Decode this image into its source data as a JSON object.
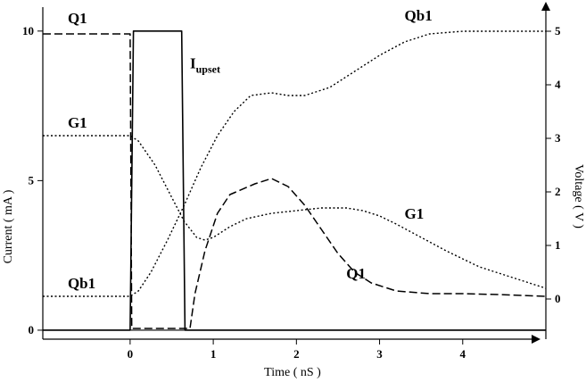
{
  "chart_data": {
    "type": "line",
    "xlabel": "Time ( nS )",
    "ylabel_left": "Current ( mA )",
    "ylabel_right": "Voltage ( V )",
    "xlim": [
      -1.05,
      5.0
    ],
    "ylim_left": [
      -0.3,
      10.8
    ],
    "ylim_right": [
      -0.75,
      5.45
    ],
    "x_ticks": [
      "0",
      "1",
      "2",
      "3",
      "4"
    ],
    "y_left_ticks": [
      "0",
      "5",
      "10"
    ],
    "y_right_ticks": [
      "0",
      "1",
      "2",
      "3",
      "4",
      "5"
    ],
    "series": [
      {
        "name": "Iupset",
        "axis": "left",
        "style": "solid",
        "points": [
          [
            -1.05,
            0
          ],
          [
            0.0,
            0
          ],
          [
            0.04,
            10
          ],
          [
            0.62,
            10
          ],
          [
            0.66,
            0
          ],
          [
            5.0,
            0
          ]
        ]
      },
      {
        "name": "Q1",
        "axis": "right",
        "style": "dashed",
        "points": [
          [
            -1.05,
            4.95
          ],
          [
            0.0,
            4.95
          ],
          [
            0.02,
            -0.55
          ],
          [
            0.72,
            -0.55
          ],
          [
            0.78,
            0.1
          ],
          [
            0.9,
            0.9
          ],
          [
            1.05,
            1.6
          ],
          [
            1.2,
            1.95
          ],
          [
            1.5,
            2.15
          ],
          [
            1.7,
            2.25
          ],
          [
            1.9,
            2.1
          ],
          [
            2.1,
            1.75
          ],
          [
            2.3,
            1.3
          ],
          [
            2.5,
            0.85
          ],
          [
            2.7,
            0.5
          ],
          [
            2.9,
            0.3
          ],
          [
            3.2,
            0.15
          ],
          [
            3.6,
            0.1
          ],
          [
            4.0,
            0.1
          ],
          [
            4.5,
            0.08
          ],
          [
            5.0,
            0.05
          ]
        ]
      },
      {
        "name": "G1",
        "axis": "right",
        "style": "dotted",
        "points": [
          [
            -1.05,
            3.05
          ],
          [
            0.0,
            3.05
          ],
          [
            0.1,
            2.95
          ],
          [
            0.3,
            2.5
          ],
          [
            0.5,
            1.9
          ],
          [
            0.65,
            1.45
          ],
          [
            0.8,
            1.15
          ],
          [
            0.9,
            1.1
          ],
          [
            1.0,
            1.15
          ],
          [
            1.2,
            1.35
          ],
          [
            1.4,
            1.5
          ],
          [
            1.7,
            1.6
          ],
          [
            2.0,
            1.65
          ],
          [
            2.3,
            1.7
          ],
          [
            2.6,
            1.7
          ],
          [
            2.8,
            1.65
          ],
          [
            3.0,
            1.55
          ],
          [
            3.2,
            1.4
          ],
          [
            3.5,
            1.15
          ],
          [
            3.8,
            0.9
          ],
          [
            4.2,
            0.6
          ],
          [
            4.6,
            0.4
          ],
          [
            5.0,
            0.2
          ]
        ]
      },
      {
        "name": "Qb1",
        "axis": "right",
        "style": "dotted",
        "points": [
          [
            -1.05,
            0.05
          ],
          [
            0.0,
            0.05
          ],
          [
            0.1,
            0.15
          ],
          [
            0.25,
            0.5
          ],
          [
            0.45,
            1.1
          ],
          [
            0.65,
            1.75
          ],
          [
            0.85,
            2.45
          ],
          [
            1.05,
            3.05
          ],
          [
            1.25,
            3.5
          ],
          [
            1.45,
            3.8
          ],
          [
            1.7,
            3.85
          ],
          [
            1.9,
            3.8
          ],
          [
            2.1,
            3.8
          ],
          [
            2.4,
            3.95
          ],
          [
            2.7,
            4.25
          ],
          [
            3.0,
            4.55
          ],
          [
            3.3,
            4.8
          ],
          [
            3.6,
            4.95
          ],
          [
            4.0,
            5.0
          ],
          [
            4.5,
            5.0
          ],
          [
            5.0,
            5.0
          ]
        ]
      }
    ],
    "annotations": [
      {
        "text": "Q1",
        "x": -0.75,
        "axis": "right",
        "y": 5.15
      },
      {
        "text": "I",
        "sub": "upset",
        "x": 0.72,
        "axis": "left",
        "y": 8.75
      },
      {
        "text": "Qb1",
        "x": 3.3,
        "axis": "right",
        "y": 5.2
      },
      {
        "text": "G1",
        "x": -0.75,
        "axis": "right",
        "y": 3.2
      },
      {
        "text": "G1",
        "x": 3.3,
        "axis": "right",
        "y": 1.5
      },
      {
        "text": "Q1",
        "x": 2.6,
        "axis": "right",
        "y": 0.38
      },
      {
        "text": "Qb1",
        "x": -0.75,
        "axis": "right",
        "y": 0.2
      }
    ]
  }
}
